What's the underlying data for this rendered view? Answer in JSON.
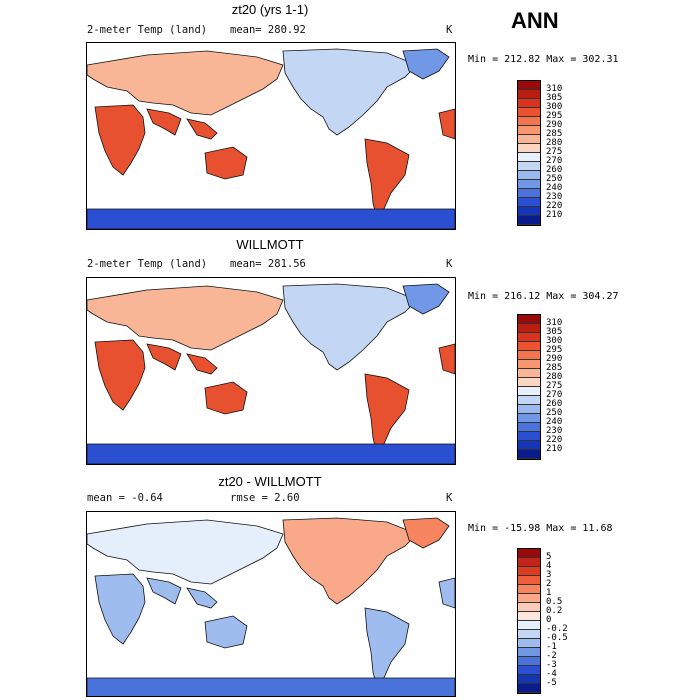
{
  "header": {
    "ann_label": "ANN"
  },
  "panels": [
    {
      "title": "zt20 (yrs 1-1)",
      "left_label": "2-meter Temp (land)",
      "mean_label": "mean= 280.92",
      "unit": "K",
      "minmax": "Min = 212.82 Max = 302.31",
      "colorbar": {
        "labels": [
          "310",
          "305",
          "300",
          "295",
          "290",
          "285",
          "280",
          "275",
          "270",
          "260",
          "250",
          "240",
          "230",
          "220",
          "210"
        ],
        "colors": [
          "#9b0a0a",
          "#b81e12",
          "#d8341d",
          "#ea5230",
          "#f27450",
          "#f7966f",
          "#f9b697",
          "#fcd5c0",
          "#eaf0fb",
          "#c3d6f4",
          "#9ab9ee",
          "#7098e6",
          "#4c72dd",
          "#2b4fd1",
          "#1535b8",
          "#0a1c8c"
        ]
      }
    },
    {
      "title": "WILLMOTT",
      "left_label": "2-meter Temp (land)",
      "mean_label": "mean= 281.56",
      "unit": "K",
      "minmax": "Min = 216.12 Max = 304.27",
      "colorbar": {
        "labels": [
          "310",
          "305",
          "300",
          "295",
          "290",
          "285",
          "280",
          "275",
          "270",
          "260",
          "250",
          "240",
          "230",
          "220",
          "210"
        ],
        "colors": [
          "#9b0a0a",
          "#b81e12",
          "#d8341d",
          "#ea5230",
          "#f27450",
          "#f7966f",
          "#f9b697",
          "#fcd5c0",
          "#eaf0fb",
          "#c3d6f4",
          "#9ab9ee",
          "#7098e6",
          "#4c72dd",
          "#2b4fd1",
          "#1535b8",
          "#0a1c8c"
        ]
      }
    },
    {
      "title": "zt20 - WILLMOTT",
      "left_label": "mean =   -0.64",
      "mean_label": "rmse =   2.60",
      "unit": "K",
      "minmax": "Min = -15.98 Max =  11.68",
      "colorbar": {
        "labels": [
          "5",
          "4",
          "3",
          "2",
          "1",
          "0.5",
          "0.2",
          "0",
          "-0.2",
          "-0.5",
          "-1",
          "-2",
          "-3",
          "-4",
          "-5"
        ],
        "colors": [
          "#9b0a0a",
          "#c0241a",
          "#dd3c22",
          "#ee5e3a",
          "#f6855f",
          "#f9a98a",
          "#fccbb7",
          "#fde6dc",
          "#e5eefb",
          "#c5d7f5",
          "#9ebdee",
          "#7198e5",
          "#4a72db",
          "#2b4fd0",
          "#1435b4",
          "#0a1c8c"
        ]
      }
    }
  ],
  "colors": {
    "ocean": "#ffffff",
    "land_warm": "#e8512f",
    "land_cold": "#9ab9ee",
    "antarctica": "#2b4fd1",
    "coast": "#111111"
  }
}
